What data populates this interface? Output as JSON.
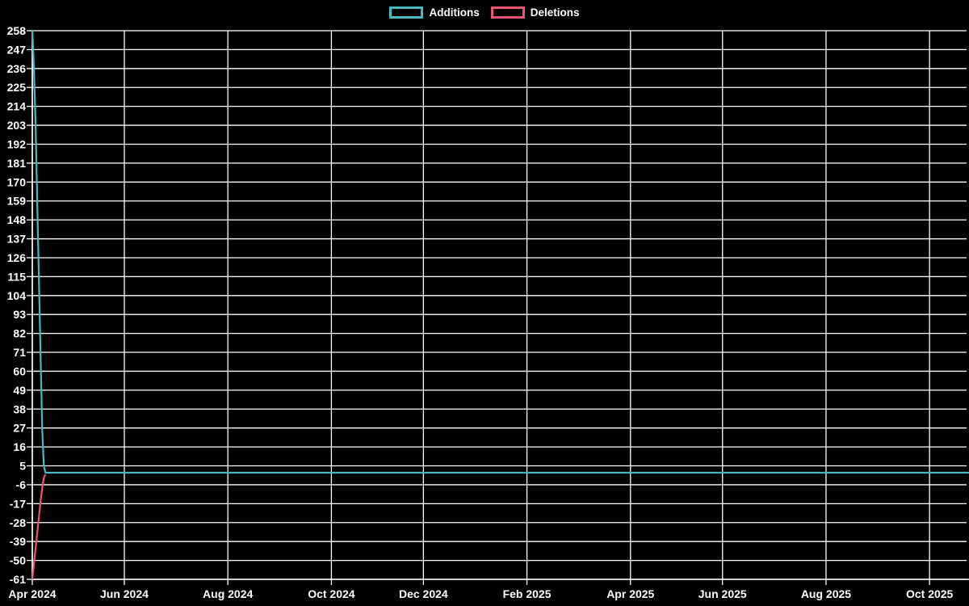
{
  "legend": {
    "position": "top-center",
    "items": [
      {
        "label": "Additions",
        "color": "#46b9bf"
      },
      {
        "label": "Deletions",
        "color": "#ec5472"
      }
    ]
  },
  "chart_data": {
    "type": "line",
    "title": "",
    "xlabel": "",
    "ylabel": "",
    "x_unit": "days since 2024-04-01",
    "xlim": [
      0,
      570
    ],
    "ylim": [
      -61,
      258
    ],
    "grid": true,
    "legend_position": "top-center",
    "background": "#000000",
    "grid_color": "#ffffff",
    "axis_color": "#ffffff",
    "text_color": "#ffffff",
    "line_width": 2.2,
    "y_ticks": [
      258,
      247,
      236,
      225,
      214,
      203,
      192,
      181,
      170,
      159,
      148,
      137,
      126,
      115,
      104,
      93,
      82,
      71,
      60,
      49,
      38,
      27,
      16,
      5,
      -6,
      -17,
      -28,
      -39,
      -50,
      -61
    ],
    "x_ticks": [
      {
        "label": "Apr 2024",
        "day": 0
      },
      {
        "label": "Jun 2024",
        "day": 56
      },
      {
        "label": "Aug 2024",
        "day": 119
      },
      {
        "label": "Oct 2024",
        "day": 182
      },
      {
        "label": "Dec 2024",
        "day": 238
      },
      {
        "label": "Feb 2025",
        "day": 301
      },
      {
        "label": "Apr 2025",
        "day": 364
      },
      {
        "label": "Jun 2025",
        "day": 420
      },
      {
        "label": "Aug 2025",
        "day": 483
      },
      {
        "label": "Oct 2025",
        "day": 546
      }
    ],
    "series": [
      {
        "name": "Additions",
        "color": "#46b9bf",
        "points": [
          [
            0,
            258
          ],
          [
            1,
            236
          ],
          [
            2,
            203
          ],
          [
            3,
            159
          ],
          [
            4,
            115
          ],
          [
            5,
            71
          ],
          [
            6,
            27
          ],
          [
            7,
            5
          ],
          [
            8,
            1
          ],
          [
            570,
            1
          ]
        ]
      },
      {
        "name": "Deletions",
        "color": "#ec5472",
        "points": [
          [
            0,
            -61
          ],
          [
            1,
            -52
          ],
          [
            2,
            -43
          ],
          [
            3,
            -34
          ],
          [
            4,
            -25
          ],
          [
            5,
            -16
          ],
          [
            6,
            -8
          ],
          [
            7,
            -2
          ],
          [
            8,
            0
          ]
        ]
      }
    ]
  }
}
